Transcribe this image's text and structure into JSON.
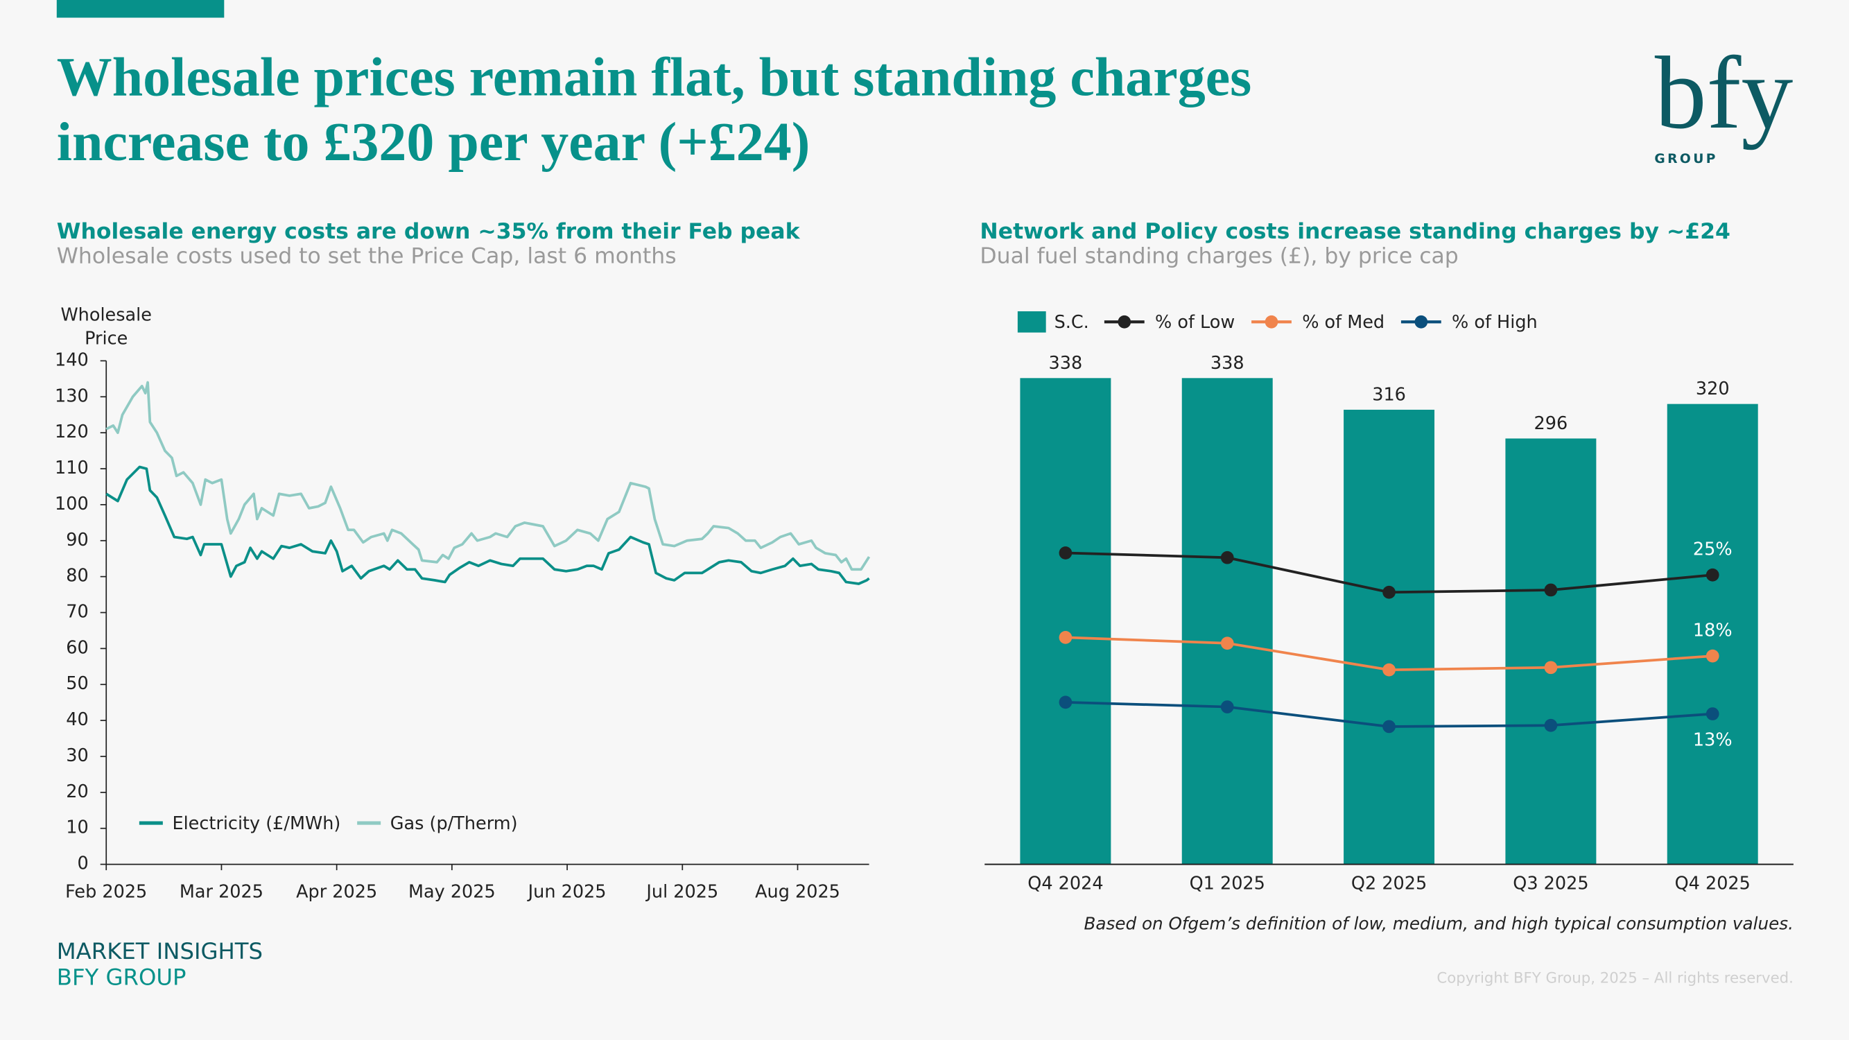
{
  "header": {
    "title_line1": "Wholesale prices remain flat, but standing charges",
    "title_line2": "increase to £320 per year (+£24)",
    "logo": "bfy",
    "logo_sub": "GROUP"
  },
  "chart_data": [
    {
      "type": "line",
      "title": "Wholesale energy costs are down ~35% from their Feb peak",
      "subtitle": "Wholesale costs used to set the Price Cap, last 6 months",
      "y_label": "Wholesale Price",
      "xlim": [
        0,
        6.62
      ],
      "xticks": [
        {
          "value": 0,
          "label": "Feb 2025"
        },
        {
          "value": 1,
          "label": "Mar 2025"
        },
        {
          "value": 2,
          "label": "Apr 2025"
        },
        {
          "value": 3,
          "label": "May 2025"
        },
        {
          "value": 4,
          "label": "Jun 2025"
        },
        {
          "value": 5,
          "label": "Jul 2025"
        },
        {
          "value": 6,
          "label": "Aug 2025"
        }
      ],
      "ylim": [
        0,
        140
      ],
      "yticks": [
        0,
        10,
        20,
        30,
        40,
        50,
        60,
        70,
        80,
        90,
        100,
        110,
        120,
        130,
        140
      ],
      "grid": false,
      "legend": "bottom-left",
      "series": [
        {
          "name": "Electricity (£/MWh)",
          "color": "#0a8f88",
          "x": [
            0,
            0.1,
            0.18,
            0.29,
            0.35,
            0.38,
            0.44,
            0.51,
            0.59,
            0.7,
            0.75,
            0.82,
            0.85,
            1.0,
            1.08,
            1.13,
            1.2,
            1.25,
            1.31,
            1.35,
            1.45,
            1.52,
            1.59,
            1.69,
            1.79,
            1.9,
            1.95,
            2.0,
            2.05,
            2.13,
            2.21,
            2.28,
            2.41,
            2.46,
            2.53,
            2.61,
            2.68,
            2.74,
            2.85,
            2.94,
            2.98,
            3.07,
            3.15,
            3.23,
            3.33,
            3.43,
            3.53,
            3.59,
            3.79,
            3.89,
            3.99,
            4.09,
            4.17,
            4.23,
            4.3,
            4.36,
            4.45,
            4.55,
            4.66,
            4.71,
            4.77,
            4.86,
            4.93,
            5.02,
            5.17,
            5.22,
            5.32,
            5.4,
            5.51,
            5.6,
            5.68,
            5.78,
            5.89,
            5.96,
            6.02,
            6.12,
            6.18,
            6.29,
            6.36,
            6.42,
            6.53,
            6.6,
            6.62
          ],
          "values": [
            103,
            101,
            107,
            110.5,
            110,
            104,
            102,
            97,
            91,
            90.5,
            91,
            86,
            89,
            89,
            80,
            83,
            84,
            88,
            85,
            87,
            85,
            88.5,
            88,
            89,
            87,
            86.5,
            90,
            87,
            81.5,
            83,
            79.5,
            81.5,
            83,
            82,
            84.5,
            82,
            82,
            79.5,
            79,
            78.5,
            80.5,
            82.5,
            84,
            83,
            84.5,
            83.5,
            83,
            85,
            85,
            82,
            81.5,
            82,
            83,
            83,
            82,
            86.5,
            87.5,
            91,
            89.5,
            89,
            81,
            79.5,
            79,
            81,
            81,
            82,
            84,
            84.5,
            84,
            81.5,
            81,
            82,
            83,
            85,
            83,
            83.5,
            82,
            81.5,
            81,
            78.5,
            78,
            79,
            79.5
          ]
        },
        {
          "name": "Gas (p/Therm)",
          "color": "#8fcac3",
          "x": [
            0,
            0.06,
            0.1,
            0.14,
            0.23,
            0.31,
            0.34,
            0.36,
            0.38,
            0.44,
            0.51,
            0.57,
            0.61,
            0.67,
            0.75,
            0.82,
            0.86,
            0.92,
            1.0,
            1.05,
            1.08,
            1.15,
            1.2,
            1.28,
            1.31,
            1.35,
            1.45,
            1.5,
            1.59,
            1.69,
            1.76,
            1.84,
            1.9,
            1.95,
            2.03,
            2.1,
            2.15,
            2.23,
            2.3,
            2.41,
            2.44,
            2.48,
            2.56,
            2.66,
            2.71,
            2.74,
            2.87,
            2.92,
            2.97,
            3.02,
            3.09,
            3.17,
            3.22,
            3.33,
            3.38,
            3.48,
            3.55,
            3.63,
            3.79,
            3.89,
            3.99,
            4.09,
            4.2,
            4.27,
            4.35,
            4.45,
            4.55,
            4.68,
            4.71,
            4.76,
            4.83,
            4.93,
            5.04,
            5.17,
            5.22,
            5.27,
            5.4,
            5.48,
            5.55,
            5.63,
            5.68,
            5.78,
            5.85,
            5.94,
            6.01,
            6.12,
            6.16,
            6.24,
            6.33,
            6.38,
            6.42,
            6.47,
            6.55,
            6.59,
            6.62
          ],
          "values": [
            121,
            122,
            120,
            125,
            130,
            133,
            131,
            134,
            123,
            120,
            115,
            113,
            108,
            109,
            106,
            100,
            107,
            106,
            107,
            96,
            92,
            96,
            100,
            103,
            96,
            99,
            97,
            103,
            102.5,
            103,
            99,
            99.5,
            100.5,
            105,
            99,
            93,
            93,
            89.5,
            91,
            92,
            90,
            93,
            92,
            89,
            87.5,
            84.5,
            84,
            86,
            85,
            88,
            89,
            92,
            90,
            91,
            92,
            91,
            94,
            95,
            94,
            88.5,
            90,
            93,
            92,
            90,
            96,
            98,
            106,
            105,
            104.5,
            96,
            89,
            88.5,
            90,
            90.5,
            92,
            94,
            93.5,
            92,
            90,
            90,
            88,
            89.5,
            91,
            92,
            89,
            90,
            88,
            86.5,
            86,
            84,
            85,
            82,
            82,
            84,
            85.5
          ]
        }
      ]
    },
    {
      "type": "bar",
      "title": "Network and Policy costs increase standing charges by ~£24",
      "subtitle": "Dual fuel standing charges (£), by price cap",
      "note": "Based on Ofgem’s definition of low, medium, and high typical consumption values.",
      "categories": [
        "Q4 2024",
        "Q1 2025",
        "Q2 2025",
        "Q3 2025",
        "Q4 2025"
      ],
      "ylim": [
        0,
        350
      ],
      "y2lim": [
        0,
        43.5
      ],
      "legend": "top-left",
      "series": [
        {
          "name": "S.C.",
          "color": "#07918a",
          "values": [
            338,
            338,
            316,
            296,
            320
          ]
        },
        {
          "name": "% of Low",
          "type": "line",
          "axis": "y2",
          "color": "#222222",
          "values": [
            26.9,
            26.5,
            23.5,
            23.7,
            25
          ],
          "value_labels": [
            null,
            null,
            null,
            null,
            "25%"
          ]
        },
        {
          "name": "% of Med",
          "type": "line",
          "axis": "y2",
          "color": "#f0844c",
          "values": [
            19.6,
            19.1,
            16.8,
            17.0,
            18
          ],
          "value_labels": [
            null,
            null,
            null,
            null,
            "18%"
          ]
        },
        {
          "name": "% of High",
          "type": "line",
          "axis": "y2",
          "color": "#0b4f7c",
          "values": [
            14.0,
            13.6,
            11.9,
            12.0,
            13
          ],
          "value_labels": [
            null,
            null,
            null,
            null,
            "13%"
          ]
        }
      ]
    }
  ],
  "footer": {
    "line1": "MARKET INSIGHTS",
    "line2": "BFY GROUP",
    "copyright": "Copyright BFY Group, 2025 – All rights reserved."
  }
}
